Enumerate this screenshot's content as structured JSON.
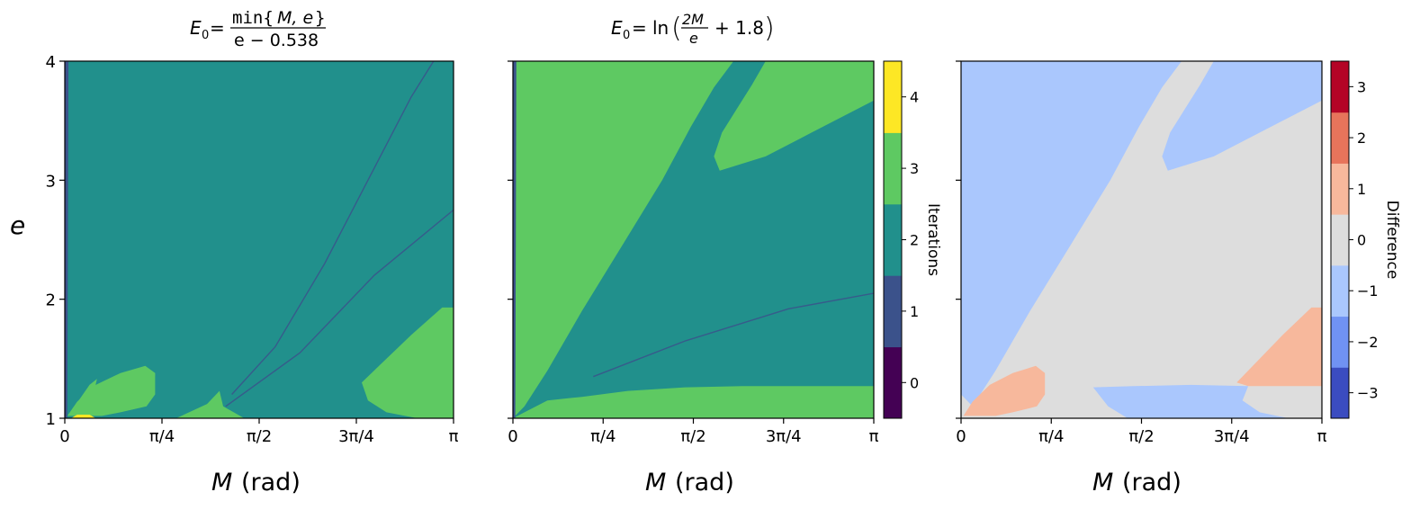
{
  "figure": {
    "ylabel": "e",
    "xlabel_var": "M",
    "xlabel_unit": "(rad)"
  },
  "titles": {
    "left": {
      "lhs": "E",
      "sub": "0",
      "eq": "=",
      "num_fn": "min{",
      "num_args": "M, e",
      "num_close": "}",
      "den": "e − 0.538"
    },
    "middle": {
      "lhs": "E",
      "sub": "0",
      "eq": "=",
      "fn": "ln",
      "frac_num": "2M",
      "frac_den": "e",
      "tail": "+ 1.8"
    }
  },
  "x_ticks": [
    "0",
    "π/4",
    "π/2",
    "3π/4",
    "π"
  ],
  "y_ticks": [
    "1",
    "2",
    "3",
    "4"
  ],
  "colorbars": {
    "iterations": {
      "label": "Iterations",
      "ticks": [
        "0",
        "1",
        "2",
        "3",
        "4"
      ],
      "colors": [
        "#440154",
        "#3b528b",
        "#21908c",
        "#5ec962",
        "#fde725"
      ]
    },
    "difference": {
      "label": "Difference",
      "ticks": [
        "−3",
        "−2",
        "−1",
        "0",
        "1",
        "2",
        "3"
      ],
      "colors": [
        "#3b4cc0",
        "#7092f3",
        "#aac7fd",
        "#dddddd",
        "#f7b89c",
        "#e7745b",
        "#b40426"
      ]
    }
  },
  "chart_data": [
    {
      "type": "heatmap",
      "title": "E0 = min{M, e} / (e − 0.538)",
      "xlabel": "M (rad)",
      "ylabel": "e",
      "xlim": [
        0,
        3.1416
      ],
      "ylim": [
        1,
        4
      ],
      "colorscale": "iterations",
      "background_value": 2,
      "regions": [
        {
          "value": 3,
          "desc": "lobe near origin",
          "polygon": [
            [
              0.02,
              1.02
            ],
            [
              0.1,
              1.14
            ],
            [
              0.25,
              1.28
            ],
            [
              0.45,
              1.38
            ],
            [
              0.65,
              1.44
            ],
            [
              0.73,
              1.38
            ],
            [
              0.73,
              1.2
            ],
            [
              0.66,
              1.1
            ],
            [
              0.45,
              1.05
            ],
            [
              0.3,
              1.02
            ]
          ]
        },
        {
          "value": 3,
          "desc": "narrow upper lobe",
          "polygon": [
            [
              0.03,
              1.02
            ],
            [
              0.12,
              1.16
            ],
            [
              0.2,
              1.28
            ],
            [
              0.26,
              1.33
            ],
            [
              0.24,
              1.24
            ],
            [
              0.14,
              1.1
            ]
          ]
        },
        {
          "value": 3,
          "desc": "lobe near M=1.3",
          "polygon": [
            [
              0.9,
              1.0
            ],
            [
              1.15,
              1.12
            ],
            [
              1.25,
              1.23
            ],
            [
              1.28,
              1.1
            ],
            [
              1.45,
              1.0
            ]
          ]
        },
        {
          "value": 3,
          "desc": "right lobe",
          "polygon": [
            [
              2.4,
              1.3
            ],
            [
              2.55,
              1.45
            ],
            [
              2.8,
              1.7
            ],
            [
              3.05,
              1.93
            ],
            [
              3.1416,
              1.93
            ],
            [
              3.1416,
              1.0
            ],
            [
              2.85,
              1.0
            ],
            [
              2.6,
              1.05
            ],
            [
              2.45,
              1.15
            ]
          ]
        },
        {
          "value": 4,
          "desc": "small spot",
          "polygon": [
            [
              0.05,
              1.0
            ],
            [
              0.1,
              1.03
            ],
            [
              0.2,
              1.03
            ],
            [
              0.25,
              1.0
            ]
          ]
        },
        {
          "value": 1,
          "desc": "strip at M≈0",
          "polygon": [
            [
              0.0,
              1.0
            ],
            [
              0.02,
              1.0
            ],
            [
              0.03,
              4.0
            ],
            [
              0.0,
              4.0
            ]
          ]
        }
      ],
      "curves": [
        {
          "value": 1,
          "points": [
            [
              1.35,
              1.2
            ],
            [
              1.7,
              1.6
            ],
            [
              2.1,
              2.3
            ],
            [
              2.5,
              3.1
            ],
            [
              2.8,
              3.7
            ],
            [
              2.98,
              4.0
            ]
          ]
        },
        {
          "value": 1,
          "points": [
            [
              1.3,
              1.1
            ],
            [
              1.9,
              1.55
            ],
            [
              2.5,
              2.2
            ],
            [
              3.1416,
              2.75
            ]
          ]
        }
      ]
    },
    {
      "type": "heatmap",
      "title": "E0 = ln(2M/e + 1.8)",
      "xlabel": "M (rad)",
      "xlim": [
        0,
        3.1416
      ],
      "ylim": [
        1,
        4
      ],
      "colorscale": "iterations",
      "background_value": 3,
      "regions": [
        {
          "value": 2,
          "desc": "central wedge",
          "polygon": [
            [
              0.0,
              1.0
            ],
            [
              0.3,
              1.15
            ],
            [
              0.6,
              1.18
            ],
            [
              1.0,
              1.23
            ],
            [
              1.5,
              1.26
            ],
            [
              2.0,
              1.27
            ],
            [
              2.5,
              1.27
            ],
            [
              3.1416,
              1.27
            ],
            [
              3.1416,
              2.2
            ],
            [
              3.1416,
              3.67
            ],
            [
              2.9,
              3.55
            ],
            [
              2.6,
              3.4
            ],
            [
              2.2,
              3.2
            ],
            [
              1.8,
              3.08
            ],
            [
              1.75,
              3.2
            ],
            [
              1.82,
              3.4
            ],
            [
              1.95,
              3.6
            ],
            [
              2.08,
              3.8
            ],
            [
              2.2,
              4.0
            ],
            [
              1.92,
              4.0
            ],
            [
              1.75,
              3.78
            ],
            [
              1.55,
              3.45
            ],
            [
              1.3,
              3.0
            ],
            [
              0.95,
              2.45
            ],
            [
              0.6,
              1.9
            ],
            [
              0.3,
              1.4
            ],
            [
              0.1,
              1.1
            ]
          ]
        },
        {
          "value": 1,
          "desc": "strip at M≈0",
          "polygon": [
            [
              0.0,
              1.0
            ],
            [
              0.02,
              1.0
            ],
            [
              0.03,
              4.0
            ],
            [
              0.0,
              4.0
            ]
          ]
        }
      ],
      "curves": [
        {
          "value": 1,
          "points": [
            [
              0.7,
              1.35
            ],
            [
              1.5,
              1.65
            ],
            [
              2.4,
              1.92
            ],
            [
              3.1416,
              2.05
            ]
          ]
        }
      ]
    },
    {
      "type": "heatmap",
      "title": "",
      "xlabel": "M (rad)",
      "xlim": [
        0,
        3.1416
      ],
      "ylim": [
        1,
        4
      ],
      "colorscale": "difference",
      "background_value": 0,
      "regions": [
        {
          "value": -1,
          "desc": "upper-left wedge",
          "polygon": [
            [
              0.0,
              1.2
            ],
            [
              0.0,
              4.0
            ],
            [
              1.92,
              4.0
            ],
            [
              1.75,
              3.78
            ],
            [
              1.55,
              3.45
            ],
            [
              1.3,
              3.0
            ],
            [
              0.95,
              2.45
            ],
            [
              0.6,
              1.9
            ],
            [
              0.3,
              1.4
            ],
            [
              0.1,
              1.1
            ]
          ]
        },
        {
          "value": -1,
          "desc": "upper-right lobe",
          "polygon": [
            [
              1.75,
              3.2
            ],
            [
              1.8,
              3.08
            ],
            [
              2.2,
              3.2
            ],
            [
              2.6,
              3.4
            ],
            [
              2.9,
              3.55
            ],
            [
              3.1416,
              3.67
            ],
            [
              3.1416,
              4.0
            ],
            [
              2.2,
              4.0
            ],
            [
              2.08,
              3.8
            ],
            [
              1.95,
              3.6
            ],
            [
              1.82,
              3.4
            ]
          ]
        },
        {
          "value": -1,
          "desc": "bottom band",
          "polygon": [
            [
              1.15,
              1.26
            ],
            [
              1.5,
              1.27
            ],
            [
              2.0,
              1.28
            ],
            [
              2.5,
              1.27
            ],
            [
              2.45,
              1.15
            ],
            [
              2.6,
              1.05
            ],
            [
              2.85,
              1.0
            ],
            [
              1.45,
              1.0
            ],
            [
              1.28,
              1.1
            ]
          ]
        },
        {
          "value": 1,
          "desc": "lower-left lobe",
          "polygon": [
            [
              0.02,
              1.02
            ],
            [
              0.1,
              1.14
            ],
            [
              0.25,
              1.28
            ],
            [
              0.45,
              1.38
            ],
            [
              0.65,
              1.44
            ],
            [
              0.73,
              1.38
            ],
            [
              0.73,
              1.2
            ],
            [
              0.66,
              1.1
            ],
            [
              0.45,
              1.05
            ],
            [
              0.3,
              1.02
            ]
          ]
        },
        {
          "value": 1,
          "desc": "right lobe",
          "polygon": [
            [
              2.4,
              1.3
            ],
            [
              2.55,
              1.45
            ],
            [
              2.8,
              1.7
            ],
            [
              3.05,
              1.93
            ],
            [
              3.1416,
              1.93
            ],
            [
              3.1416,
              1.27
            ],
            [
              2.5,
              1.27
            ]
          ]
        }
      ],
      "curves": []
    }
  ]
}
